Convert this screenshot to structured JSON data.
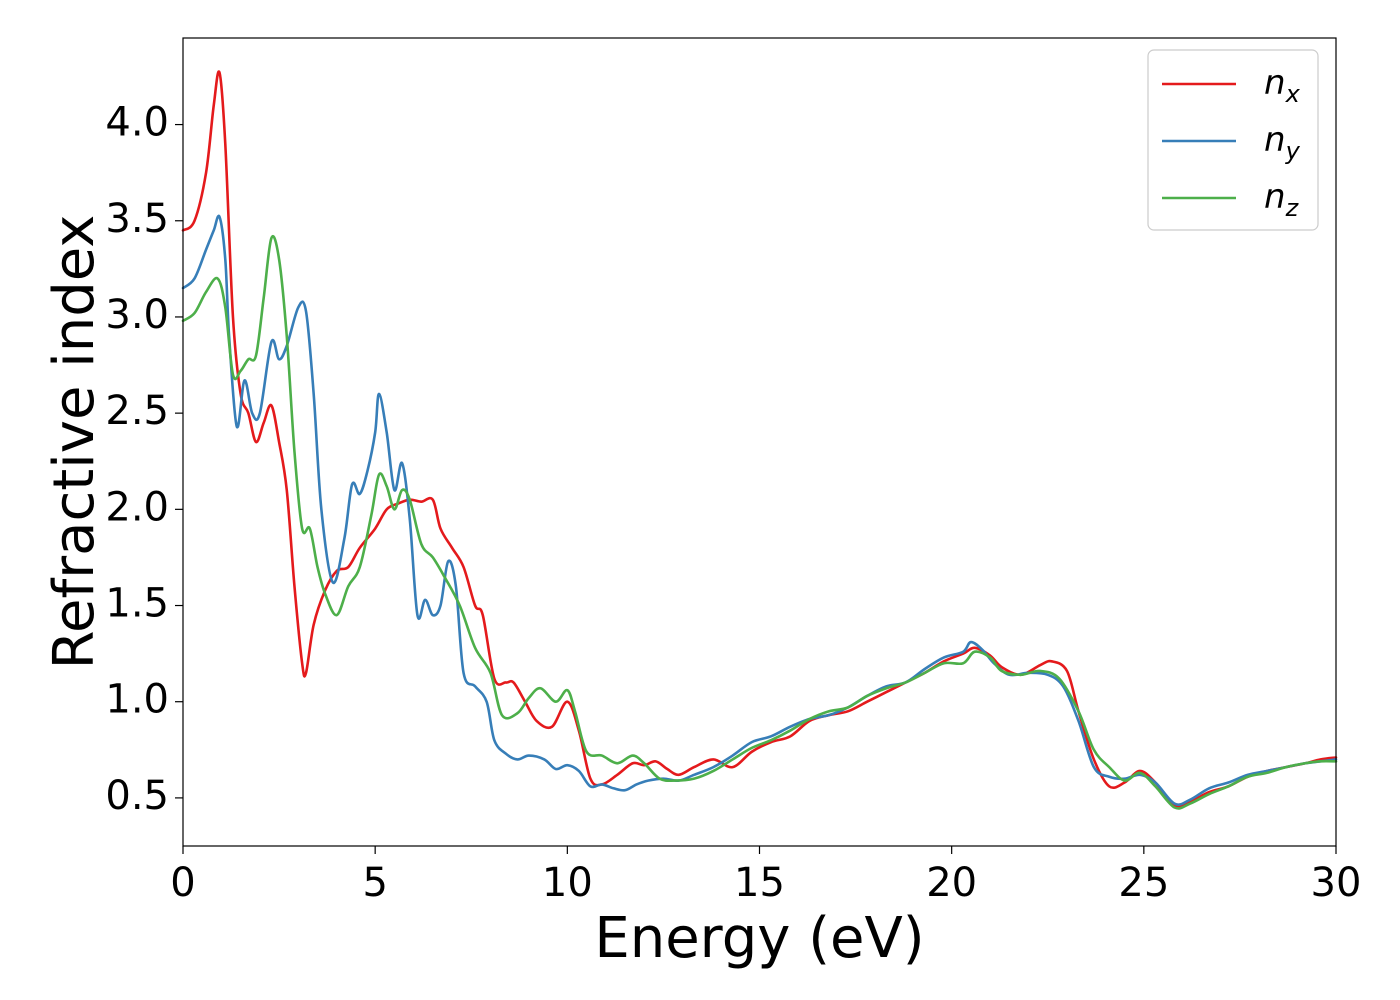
{
  "chart_data": {
    "type": "line",
    "title": "",
    "xlabel": "Energy (eV)",
    "ylabel": "Refractive index",
    "xlim": [
      0,
      30
    ],
    "ylim": [
      0.25,
      4.45
    ],
    "xticks": [
      0,
      5,
      10,
      15,
      20,
      25,
      30
    ],
    "xtick_labels": [
      "0",
      "5",
      "10",
      "15",
      "20",
      "25",
      "30"
    ],
    "yticks": [
      0.5,
      1.0,
      1.5,
      2.0,
      2.5,
      3.0,
      3.5,
      4.0
    ],
    "ytick_labels": [
      "0.5",
      "1.0",
      "1.5",
      "2.0",
      "2.5",
      "3.0",
      "3.5",
      "4.0"
    ],
    "grid": false,
    "legend_position": "top-right",
    "series": [
      {
        "name": "n",
        "subscript": "x",
        "color": "#e41a1c",
        "points": [
          [
            0,
            3.45
          ],
          [
            0.3,
            3.5
          ],
          [
            0.6,
            3.75
          ],
          [
            0.8,
            4.1
          ],
          [
            0.95,
            4.27
          ],
          [
            1.1,
            3.9
          ],
          [
            1.3,
            3.0
          ],
          [
            1.5,
            2.6
          ],
          [
            1.7,
            2.5
          ],
          [
            1.9,
            2.35
          ],
          [
            2.1,
            2.45
          ],
          [
            2.3,
            2.54
          ],
          [
            2.5,
            2.35
          ],
          [
            2.7,
            2.1
          ],
          [
            2.9,
            1.6
          ],
          [
            3.1,
            1.2
          ],
          [
            3.2,
            1.15
          ],
          [
            3.4,
            1.4
          ],
          [
            3.7,
            1.58
          ],
          [
            4.0,
            1.68
          ],
          [
            4.3,
            1.7
          ],
          [
            4.6,
            1.8
          ],
          [
            5.0,
            1.9
          ],
          [
            5.3,
            2.0
          ],
          [
            5.6,
            2.03
          ],
          [
            5.9,
            2.05
          ],
          [
            6.2,
            2.04
          ],
          [
            6.5,
            2.05
          ],
          [
            6.7,
            1.9
          ],
          [
            7.0,
            1.8
          ],
          [
            7.3,
            1.7
          ],
          [
            7.6,
            1.5
          ],
          [
            7.8,
            1.45
          ],
          [
            8.1,
            1.12
          ],
          [
            8.4,
            1.1
          ],
          [
            8.6,
            1.1
          ],
          [
            8.9,
            1.0
          ],
          [
            9.2,
            0.9
          ],
          [
            9.6,
            0.87
          ],
          [
            10.0,
            1.0
          ],
          [
            10.3,
            0.85
          ],
          [
            10.6,
            0.6
          ],
          [
            10.9,
            0.57
          ],
          [
            11.3,
            0.62
          ],
          [
            11.7,
            0.68
          ],
          [
            12.0,
            0.67
          ],
          [
            12.3,
            0.69
          ],
          [
            12.6,
            0.65
          ],
          [
            12.9,
            0.62
          ],
          [
            13.3,
            0.66
          ],
          [
            13.8,
            0.7
          ],
          [
            14.3,
            0.66
          ],
          [
            14.8,
            0.74
          ],
          [
            15.3,
            0.79
          ],
          [
            15.8,
            0.82
          ],
          [
            16.3,
            0.9
          ],
          [
            16.8,
            0.93
          ],
          [
            17.3,
            0.95
          ],
          [
            17.8,
            1.0
          ],
          [
            18.3,
            1.05
          ],
          [
            18.8,
            1.1
          ],
          [
            19.3,
            1.15
          ],
          [
            19.8,
            1.21
          ],
          [
            20.3,
            1.25
          ],
          [
            20.6,
            1.28
          ],
          [
            21.0,
            1.24
          ],
          [
            21.3,
            1.18
          ],
          [
            21.8,
            1.14
          ],
          [
            22.3,
            1.19
          ],
          [
            22.6,
            1.21
          ],
          [
            23.0,
            1.16
          ],
          [
            23.3,
            0.95
          ],
          [
            23.7,
            0.7
          ],
          [
            24.1,
            0.56
          ],
          [
            24.5,
            0.58
          ],
          [
            24.9,
            0.64
          ],
          [
            25.3,
            0.58
          ],
          [
            25.8,
            0.46
          ],
          [
            26.2,
            0.48
          ],
          [
            26.7,
            0.53
          ],
          [
            27.2,
            0.56
          ],
          [
            27.7,
            0.61
          ],
          [
            28.2,
            0.64
          ],
          [
            28.7,
            0.66
          ],
          [
            29.2,
            0.68
          ],
          [
            29.6,
            0.7
          ],
          [
            30.0,
            0.71
          ]
        ]
      },
      {
        "name": "n",
        "subscript": "y",
        "color": "#377eb8",
        "points": [
          [
            0,
            3.15
          ],
          [
            0.3,
            3.2
          ],
          [
            0.6,
            3.35
          ],
          [
            0.8,
            3.45
          ],
          [
            0.95,
            3.52
          ],
          [
            1.1,
            3.3
          ],
          [
            1.2,
            2.9
          ],
          [
            1.4,
            2.43
          ],
          [
            1.6,
            2.67
          ],
          [
            1.8,
            2.5
          ],
          [
            2.0,
            2.5
          ],
          [
            2.3,
            2.87
          ],
          [
            2.5,
            2.78
          ],
          [
            2.7,
            2.85
          ],
          [
            3.0,
            3.05
          ],
          [
            3.2,
            3.03
          ],
          [
            3.4,
            2.6
          ],
          [
            3.6,
            2.0
          ],
          [
            3.9,
            1.62
          ],
          [
            4.2,
            1.85
          ],
          [
            4.4,
            2.13
          ],
          [
            4.6,
            2.08
          ],
          [
            4.8,
            2.2
          ],
          [
            5.0,
            2.4
          ],
          [
            5.1,
            2.6
          ],
          [
            5.3,
            2.4
          ],
          [
            5.5,
            2.1
          ],
          [
            5.7,
            2.24
          ],
          [
            5.9,
            1.95
          ],
          [
            6.1,
            1.45
          ],
          [
            6.3,
            1.53
          ],
          [
            6.5,
            1.45
          ],
          [
            6.7,
            1.5
          ],
          [
            6.9,
            1.73
          ],
          [
            7.1,
            1.6
          ],
          [
            7.3,
            1.15
          ],
          [
            7.6,
            1.08
          ],
          [
            7.9,
            1.0
          ],
          [
            8.1,
            0.8
          ],
          [
            8.4,
            0.73
          ],
          [
            8.7,
            0.7
          ],
          [
            9.0,
            0.72
          ],
          [
            9.4,
            0.7
          ],
          [
            9.7,
            0.65
          ],
          [
            10.0,
            0.67
          ],
          [
            10.3,
            0.64
          ],
          [
            10.6,
            0.56
          ],
          [
            10.9,
            0.57
          ],
          [
            11.2,
            0.55
          ],
          [
            11.5,
            0.54
          ],
          [
            11.8,
            0.57
          ],
          [
            12.1,
            0.59
          ],
          [
            12.5,
            0.6
          ],
          [
            12.9,
            0.59
          ],
          [
            13.3,
            0.62
          ],
          [
            13.8,
            0.66
          ],
          [
            14.3,
            0.72
          ],
          [
            14.8,
            0.79
          ],
          [
            15.3,
            0.82
          ],
          [
            15.8,
            0.87
          ],
          [
            16.3,
            0.91
          ],
          [
            16.8,
            0.93
          ],
          [
            17.3,
            0.97
          ],
          [
            17.8,
            1.03
          ],
          [
            18.3,
            1.08
          ],
          [
            18.8,
            1.1
          ],
          [
            19.3,
            1.17
          ],
          [
            19.8,
            1.23
          ],
          [
            20.3,
            1.26
          ],
          [
            20.5,
            1.31
          ],
          [
            20.8,
            1.27
          ],
          [
            21.1,
            1.2
          ],
          [
            21.5,
            1.14
          ],
          [
            22.0,
            1.15
          ],
          [
            22.5,
            1.14
          ],
          [
            22.9,
            1.08
          ],
          [
            23.3,
            0.9
          ],
          [
            23.7,
            0.66
          ],
          [
            24.1,
            0.61
          ],
          [
            24.5,
            0.6
          ],
          [
            24.9,
            0.62
          ],
          [
            25.3,
            0.58
          ],
          [
            25.8,
            0.47
          ],
          [
            26.2,
            0.49
          ],
          [
            26.7,
            0.55
          ],
          [
            27.2,
            0.58
          ],
          [
            27.7,
            0.62
          ],
          [
            28.2,
            0.64
          ],
          [
            28.7,
            0.66
          ],
          [
            29.2,
            0.68
          ],
          [
            29.6,
            0.69
          ],
          [
            30.0,
            0.7
          ]
        ]
      },
      {
        "name": "n",
        "subscript": "z",
        "color": "#4daf4a",
        "points": [
          [
            0,
            2.98
          ],
          [
            0.3,
            3.02
          ],
          [
            0.6,
            3.13
          ],
          [
            0.9,
            3.2
          ],
          [
            1.1,
            3.05
          ],
          [
            1.3,
            2.7
          ],
          [
            1.5,
            2.72
          ],
          [
            1.7,
            2.78
          ],
          [
            1.9,
            2.8
          ],
          [
            2.1,
            3.1
          ],
          [
            2.3,
            3.41
          ],
          [
            2.5,
            3.3
          ],
          [
            2.7,
            2.9
          ],
          [
            2.9,
            2.3
          ],
          [
            3.1,
            1.9
          ],
          [
            3.3,
            1.9
          ],
          [
            3.5,
            1.7
          ],
          [
            3.7,
            1.56
          ],
          [
            4.0,
            1.45
          ],
          [
            4.3,
            1.6
          ],
          [
            4.6,
            1.7
          ],
          [
            4.9,
            1.97
          ],
          [
            5.1,
            2.18
          ],
          [
            5.3,
            2.12
          ],
          [
            5.5,
            2.0
          ],
          [
            5.7,
            2.1
          ],
          [
            5.9,
            2.05
          ],
          [
            6.2,
            1.82
          ],
          [
            6.5,
            1.75
          ],
          [
            6.8,
            1.65
          ],
          [
            7.2,
            1.5
          ],
          [
            7.6,
            1.28
          ],
          [
            8.0,
            1.15
          ],
          [
            8.3,
            0.93
          ],
          [
            8.7,
            0.94
          ],
          [
            9.0,
            1.02
          ],
          [
            9.3,
            1.07
          ],
          [
            9.7,
            1.0
          ],
          [
            10.0,
            1.06
          ],
          [
            10.2,
            0.95
          ],
          [
            10.5,
            0.74
          ],
          [
            10.9,
            0.72
          ],
          [
            11.3,
            0.68
          ],
          [
            11.7,
            0.72
          ],
          [
            12.0,
            0.68
          ],
          [
            12.4,
            0.6
          ],
          [
            12.8,
            0.59
          ],
          [
            13.3,
            0.6
          ],
          [
            13.8,
            0.64
          ],
          [
            14.3,
            0.7
          ],
          [
            14.8,
            0.76
          ],
          [
            15.3,
            0.8
          ],
          [
            15.8,
            0.85
          ],
          [
            16.3,
            0.91
          ],
          [
            16.8,
            0.95
          ],
          [
            17.3,
            0.97
          ],
          [
            17.8,
            1.03
          ],
          [
            18.3,
            1.07
          ],
          [
            18.8,
            1.1
          ],
          [
            19.3,
            1.15
          ],
          [
            19.8,
            1.2
          ],
          [
            20.3,
            1.2
          ],
          [
            20.6,
            1.26
          ],
          [
            21.0,
            1.23
          ],
          [
            21.3,
            1.16
          ],
          [
            21.8,
            1.14
          ],
          [
            22.3,
            1.16
          ],
          [
            22.8,
            1.12
          ],
          [
            23.3,
            0.95
          ],
          [
            23.7,
            0.75
          ],
          [
            24.1,
            0.66
          ],
          [
            24.5,
            0.59
          ],
          [
            24.9,
            0.63
          ],
          [
            25.3,
            0.56
          ],
          [
            25.8,
            0.45
          ],
          [
            26.2,
            0.47
          ],
          [
            26.7,
            0.52
          ],
          [
            27.2,
            0.56
          ],
          [
            27.7,
            0.61
          ],
          [
            28.2,
            0.63
          ],
          [
            28.7,
            0.66
          ],
          [
            29.2,
            0.68
          ],
          [
            29.6,
            0.69
          ],
          [
            30.0,
            0.69
          ]
        ]
      }
    ]
  }
}
